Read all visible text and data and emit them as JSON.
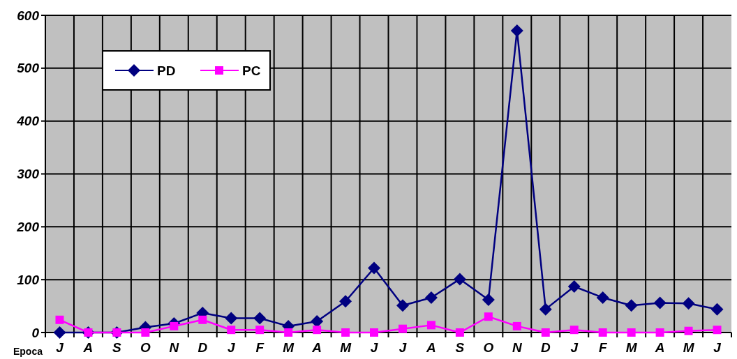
{
  "chart_data": {
    "type": "line",
    "xlabel": "Epoca",
    "categories": [
      "J",
      "A",
      "S",
      "O",
      "N",
      "D",
      "J",
      "F",
      "M",
      "A",
      "M",
      "J",
      "J",
      "A",
      "S",
      "O",
      "N",
      "D",
      "J",
      "F",
      "M",
      "A",
      "M",
      "J"
    ],
    "series": [
      {
        "name": "PD",
        "color": "#000080",
        "marker": "diamond",
        "values": [
          0,
          0,
          0,
          10,
          17,
          37,
          27,
          27,
          12,
          21,
          59,
          122,
          51,
          66,
          101,
          62,
          571,
          44,
          87,
          66,
          51,
          56,
          55,
          44
        ]
      },
      {
        "name": "PC",
        "color": "#ff00ff",
        "marker": "square",
        "values": [
          24,
          0,
          0,
          0,
          12,
          24,
          5,
          5,
          0,
          5,
          0,
          0,
          7,
          14,
          0,
          30,
          12,
          0,
          5,
          0,
          0,
          0,
          3,
          5
        ]
      }
    ],
    "ylim": [
      0,
      600
    ],
    "yticks": [
      0,
      100,
      200,
      300,
      400,
      500,
      600
    ],
    "grid": true,
    "legend": "top left"
  }
}
